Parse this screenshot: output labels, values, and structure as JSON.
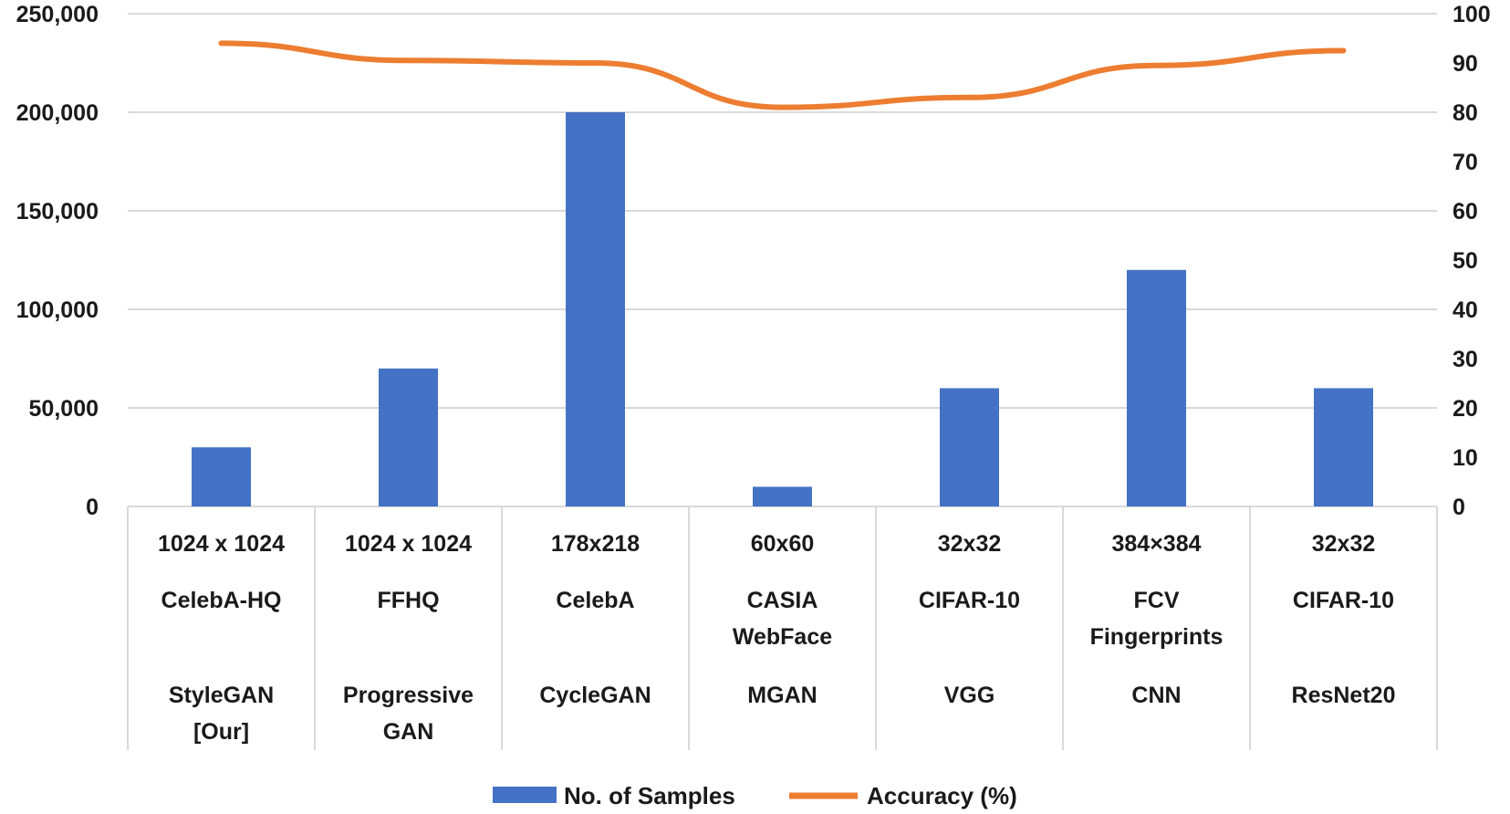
{
  "chart_data": {
    "type": "bar",
    "title": "",
    "xlabel": "",
    "ylabel": "",
    "y2label": "",
    "ylim": [
      0,
      250000
    ],
    "y2lim": [
      0,
      100
    ],
    "yticks": [
      "0",
      "50,000",
      "100,000",
      "150,000",
      "200,000",
      "250,000"
    ],
    "y2ticks": [
      "0",
      "10",
      "20",
      "30",
      "40",
      "50",
      "60",
      "70",
      "80",
      "90",
      "100"
    ],
    "categories": [
      {
        "resolution": "1024 x 1024",
        "dataset": [
          "CelebA-HQ"
        ],
        "model": [
          "StyleGAN",
          "[Our]"
        ]
      },
      {
        "resolution": "1024 x 1024",
        "dataset": [
          "FFHQ"
        ],
        "model": [
          "Progressive",
          "GAN"
        ]
      },
      {
        "resolution": "178x218",
        "dataset": [
          "CelebA"
        ],
        "model": [
          "CycleGAN"
        ]
      },
      {
        "resolution": "60x60",
        "dataset": [
          "CASIA",
          "WebFace"
        ],
        "model": [
          "MGAN"
        ]
      },
      {
        "resolution": "32x32",
        "dataset": [
          "CIFAR-10"
        ],
        "model": [
          "VGG"
        ]
      },
      {
        "resolution": "384×384",
        "dataset": [
          "FCV",
          "Fingerprints"
        ],
        "model": [
          "CNN"
        ]
      },
      {
        "resolution": "32x32",
        "dataset": [
          "CIFAR-10"
        ],
        "model": [
          "ResNet20"
        ]
      }
    ],
    "series": [
      {
        "name": "No. of Samples",
        "type": "bar",
        "axis": "left",
        "color": "#4472c4",
        "values": [
          30000,
          70000,
          200000,
          10000,
          60000,
          120000,
          60000
        ]
      },
      {
        "name": "Accuracy (%)",
        "type": "line",
        "axis": "right",
        "color": "#ed7d31",
        "values": [
          94,
          90.5,
          90,
          81,
          83,
          89.5,
          92.5
        ]
      }
    ],
    "grid": true,
    "legend_position": "bottom"
  }
}
